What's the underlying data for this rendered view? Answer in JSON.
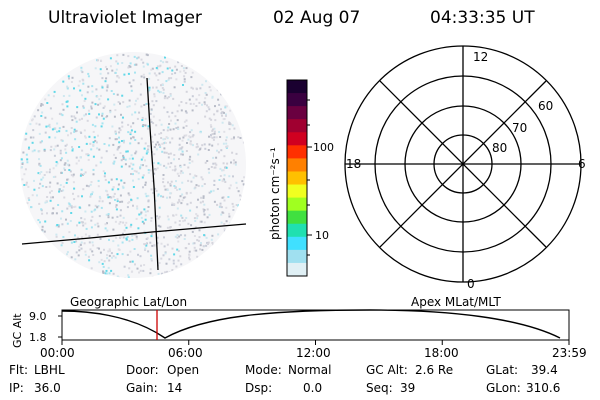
{
  "header": {
    "instrument": "Ultraviolet Imager",
    "date": "02 Aug 07",
    "time": "04:33:35 UT"
  },
  "colorbar": {
    "label": "photon cm⁻²s⁻¹",
    "ticks": [
      "100",
      "10"
    ],
    "colors": [
      "#1a0030",
      "#3a0040",
      "#6a0040",
      "#a00030",
      "#d00020",
      "#ff3000",
      "#ff8000",
      "#ffc000",
      "#f0ff20",
      "#a0ff20",
      "#40e040",
      "#20e0b0",
      "#40e0ff",
      "#a0e0f0",
      "#e0f0f5"
    ]
  },
  "polar_plot": {
    "labels": {
      "top": "12",
      "bottom": "0",
      "left": "18",
      "right": "6"
    },
    "lat_labels": [
      "60",
      "70",
      "80"
    ]
  },
  "altitude_plot": {
    "ylabel": "GC Alt",
    "yticks": [
      "9.0",
      "1.8"
    ],
    "left_title": "Geographic Lat/Lon",
    "right_title": "Apex MLat/MLT",
    "xticks": [
      "00:00",
      "06:00",
      "12:00",
      "18:00",
      "23:59"
    ],
    "marker_time": "04:33:35",
    "marker_color": "#cc0000"
  },
  "info": {
    "flt_label": "Flt:",
    "flt_value": "LBHL",
    "ip_label": "IP:",
    "ip_value": "36.0",
    "door_label": "Door:",
    "door_value": "Open",
    "gain_label": "Gain:",
    "gain_value": "14",
    "mode_label": "Mode:",
    "mode_value": "Normal",
    "dsp_label": "Dsp:",
    "dsp_value": "0.0",
    "gcalt_label": "GC Alt:",
    "gcalt_value": "2.6 Re",
    "seq_label": "Seq:",
    "seq_value": "39",
    "glat_label": "GLat:",
    "glat_value": "39.4",
    "glon_label": "GLon:",
    "glon_value": "310.6"
  }
}
